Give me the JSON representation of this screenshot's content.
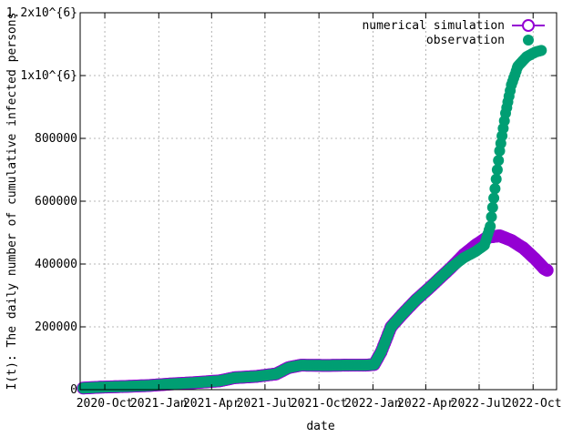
{
  "chart_data": {
    "type": "scatter",
    "title": "",
    "xlabel": "date",
    "ylabel": "I(t): The daily number of cumulative infected persons",
    "xlim": [
      "2020-08-20",
      "2022-11-10"
    ],
    "ylim": [
      0,
      1200000
    ],
    "x_ticks": [
      {
        "date": "2020-10-01",
        "label": "2020-Oct"
      },
      {
        "date": "2021-01-01",
        "label": "2021-Jan"
      },
      {
        "date": "2021-04-01",
        "label": "2021-Apr"
      },
      {
        "date": "2021-07-01",
        "label": "2021-Jul"
      },
      {
        "date": "2021-10-01",
        "label": "2021-Oct"
      },
      {
        "date": "2022-01-01",
        "label": "2022-Jan"
      },
      {
        "date": "2022-04-01",
        "label": "2022-Apr"
      },
      {
        "date": "2022-07-01",
        "label": "2022-Jul"
      },
      {
        "date": "2022-10-01",
        "label": "2022-Oct"
      }
    ],
    "y_ticks": [
      {
        "value": 0,
        "label": "0"
      },
      {
        "value": 200000,
        "label": "200000"
      },
      {
        "value": 400000,
        "label": "400000"
      },
      {
        "value": 600000,
        "label": "600000"
      },
      {
        "value": 800000,
        "label": "800000"
      },
      {
        "value": 1000000,
        "label": "1x10^{6}"
      },
      {
        "value": 1200000,
        "label": "1.2x10^{6}"
      }
    ],
    "grid": true,
    "legend_position": "top-right",
    "series": [
      {
        "name": "numerical simulation",
        "marker": "open-circle",
        "color": "#9400d3",
        "points": [
          [
            "2020-08-25",
            5000
          ],
          [
            "2020-09-25",
            8000
          ],
          [
            "2020-11-01",
            10000
          ],
          [
            "2020-12-15",
            13000
          ],
          [
            "2021-01-20",
            18000
          ],
          [
            "2021-03-01",
            22000
          ],
          [
            "2021-04-15",
            28000
          ],
          [
            "2021-05-10",
            38000
          ],
          [
            "2021-06-15",
            42000
          ],
          [
            "2021-07-20",
            50000
          ],
          [
            "2021-08-10",
            70000
          ],
          [
            "2021-09-01",
            78000
          ],
          [
            "2021-10-15",
            77000
          ],
          [
            "2021-11-15",
            78000
          ],
          [
            "2021-12-20",
            78000
          ],
          [
            "2022-01-03",
            80000
          ],
          [
            "2022-01-15",
            120000
          ],
          [
            "2022-02-01",
            200000
          ],
          [
            "2022-02-20",
            240000
          ],
          [
            "2022-03-15",
            285000
          ],
          [
            "2022-04-05",
            320000
          ],
          [
            "2022-04-25",
            355000
          ],
          [
            "2022-05-15",
            390000
          ],
          [
            "2022-06-05",
            430000
          ],
          [
            "2022-06-25",
            460000
          ],
          [
            "2022-07-15",
            485000
          ],
          [
            "2022-08-05",
            490000
          ],
          [
            "2022-08-25",
            475000
          ],
          [
            "2022-09-15",
            450000
          ],
          [
            "2022-10-05",
            415000
          ],
          [
            "2022-10-20",
            385000
          ],
          [
            "2022-10-25",
            380000
          ]
        ]
      },
      {
        "name": "observation",
        "marker": "filled-circle",
        "color": "#009e73",
        "points": [
          [
            "2020-08-25",
            5000
          ],
          [
            "2020-09-25",
            8000
          ],
          [
            "2020-11-01",
            10000
          ],
          [
            "2020-12-15",
            13000
          ],
          [
            "2021-01-20",
            18000
          ],
          [
            "2021-03-01",
            22000
          ],
          [
            "2021-04-15",
            28000
          ],
          [
            "2021-05-10",
            38000
          ],
          [
            "2021-06-15",
            42000
          ],
          [
            "2021-07-20",
            50000
          ],
          [
            "2021-08-10",
            70000
          ],
          [
            "2021-09-01",
            78000
          ],
          [
            "2021-10-15",
            77000
          ],
          [
            "2021-11-15",
            78000
          ],
          [
            "2021-12-20",
            78000
          ],
          [
            "2022-01-03",
            80000
          ],
          [
            "2022-01-15",
            120000
          ],
          [
            "2022-02-01",
            200000
          ],
          [
            "2022-02-20",
            240000
          ],
          [
            "2022-03-15",
            285000
          ],
          [
            "2022-04-05",
            320000
          ],
          [
            "2022-04-25",
            355000
          ],
          [
            "2022-05-15",
            390000
          ],
          [
            "2022-06-05",
            420000
          ],
          [
            "2022-06-25",
            440000
          ],
          [
            "2022-07-10",
            460000
          ],
          [
            "2022-07-20",
            520000
          ],
          [
            "2022-07-28",
            640000
          ],
          [
            "2022-08-05",
            760000
          ],
          [
            "2022-08-15",
            880000
          ],
          [
            "2022-08-25",
            970000
          ],
          [
            "2022-09-05",
            1030000
          ],
          [
            "2022-09-20",
            1060000
          ],
          [
            "2022-10-05",
            1075000
          ],
          [
            "2022-10-15",
            1080000
          ]
        ]
      }
    ]
  }
}
